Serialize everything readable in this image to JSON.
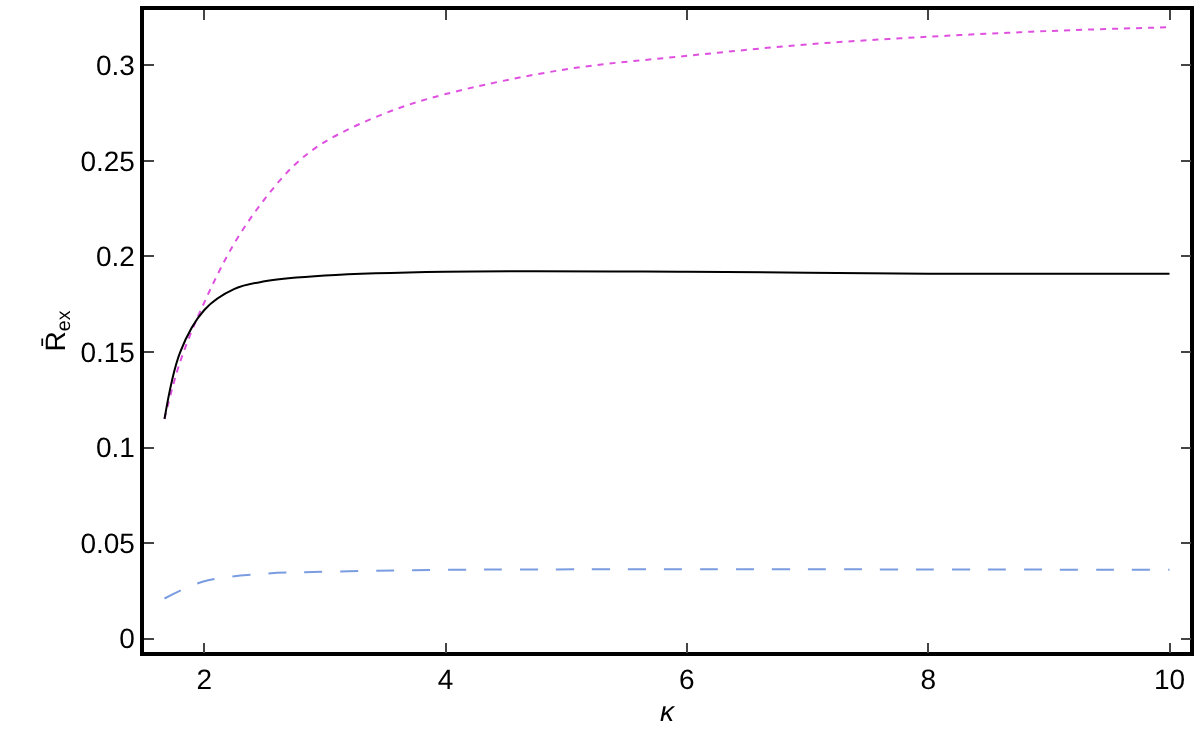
{
  "chart_data": {
    "type": "line",
    "xlabel": "κ",
    "ylabel": "R̄$_{ex}$",
    "xlim": [
      1.5,
      10.17
    ],
    "ylim": [
      -0.007,
      0.329
    ],
    "xticks": [
      2,
      4,
      6,
      8,
      10
    ],
    "yticks": [
      0,
      0.05,
      0.1,
      0.15,
      0.2,
      0.25,
      0.3
    ],
    "series": [
      {
        "color": "#e050e0",
        "line_style": "dotted",
        "x": [
          1.67,
          1.8,
          2,
          2.25,
          2.5,
          2.75,
          3,
          3.5,
          4,
          5,
          6,
          7,
          8,
          9,
          10
        ],
        "values": [
          0.115,
          0.145,
          0.176,
          0.207,
          0.23,
          0.248,
          0.26,
          0.275,
          0.285,
          0.298,
          0.305,
          0.311,
          0.315,
          0.318,
          0.32
        ]
      },
      {
        "color": "#000000",
        "line_style": "solid",
        "x": [
          1.67,
          1.8,
          2,
          2.25,
          2.5,
          3,
          4,
          6,
          8,
          10
        ],
        "values": [
          0.115,
          0.15,
          0.172,
          0.183,
          0.187,
          0.19,
          0.192,
          0.192,
          0.191,
          0.191
        ]
      },
      {
        "color": "#7a9ce0",
        "line_style": "dashed",
        "x": [
          1.67,
          2,
          2.5,
          3,
          4,
          10
        ],
        "values": [
          0.021,
          0.03,
          0.034,
          0.035,
          0.036,
          0.036
        ]
      }
    ]
  }
}
